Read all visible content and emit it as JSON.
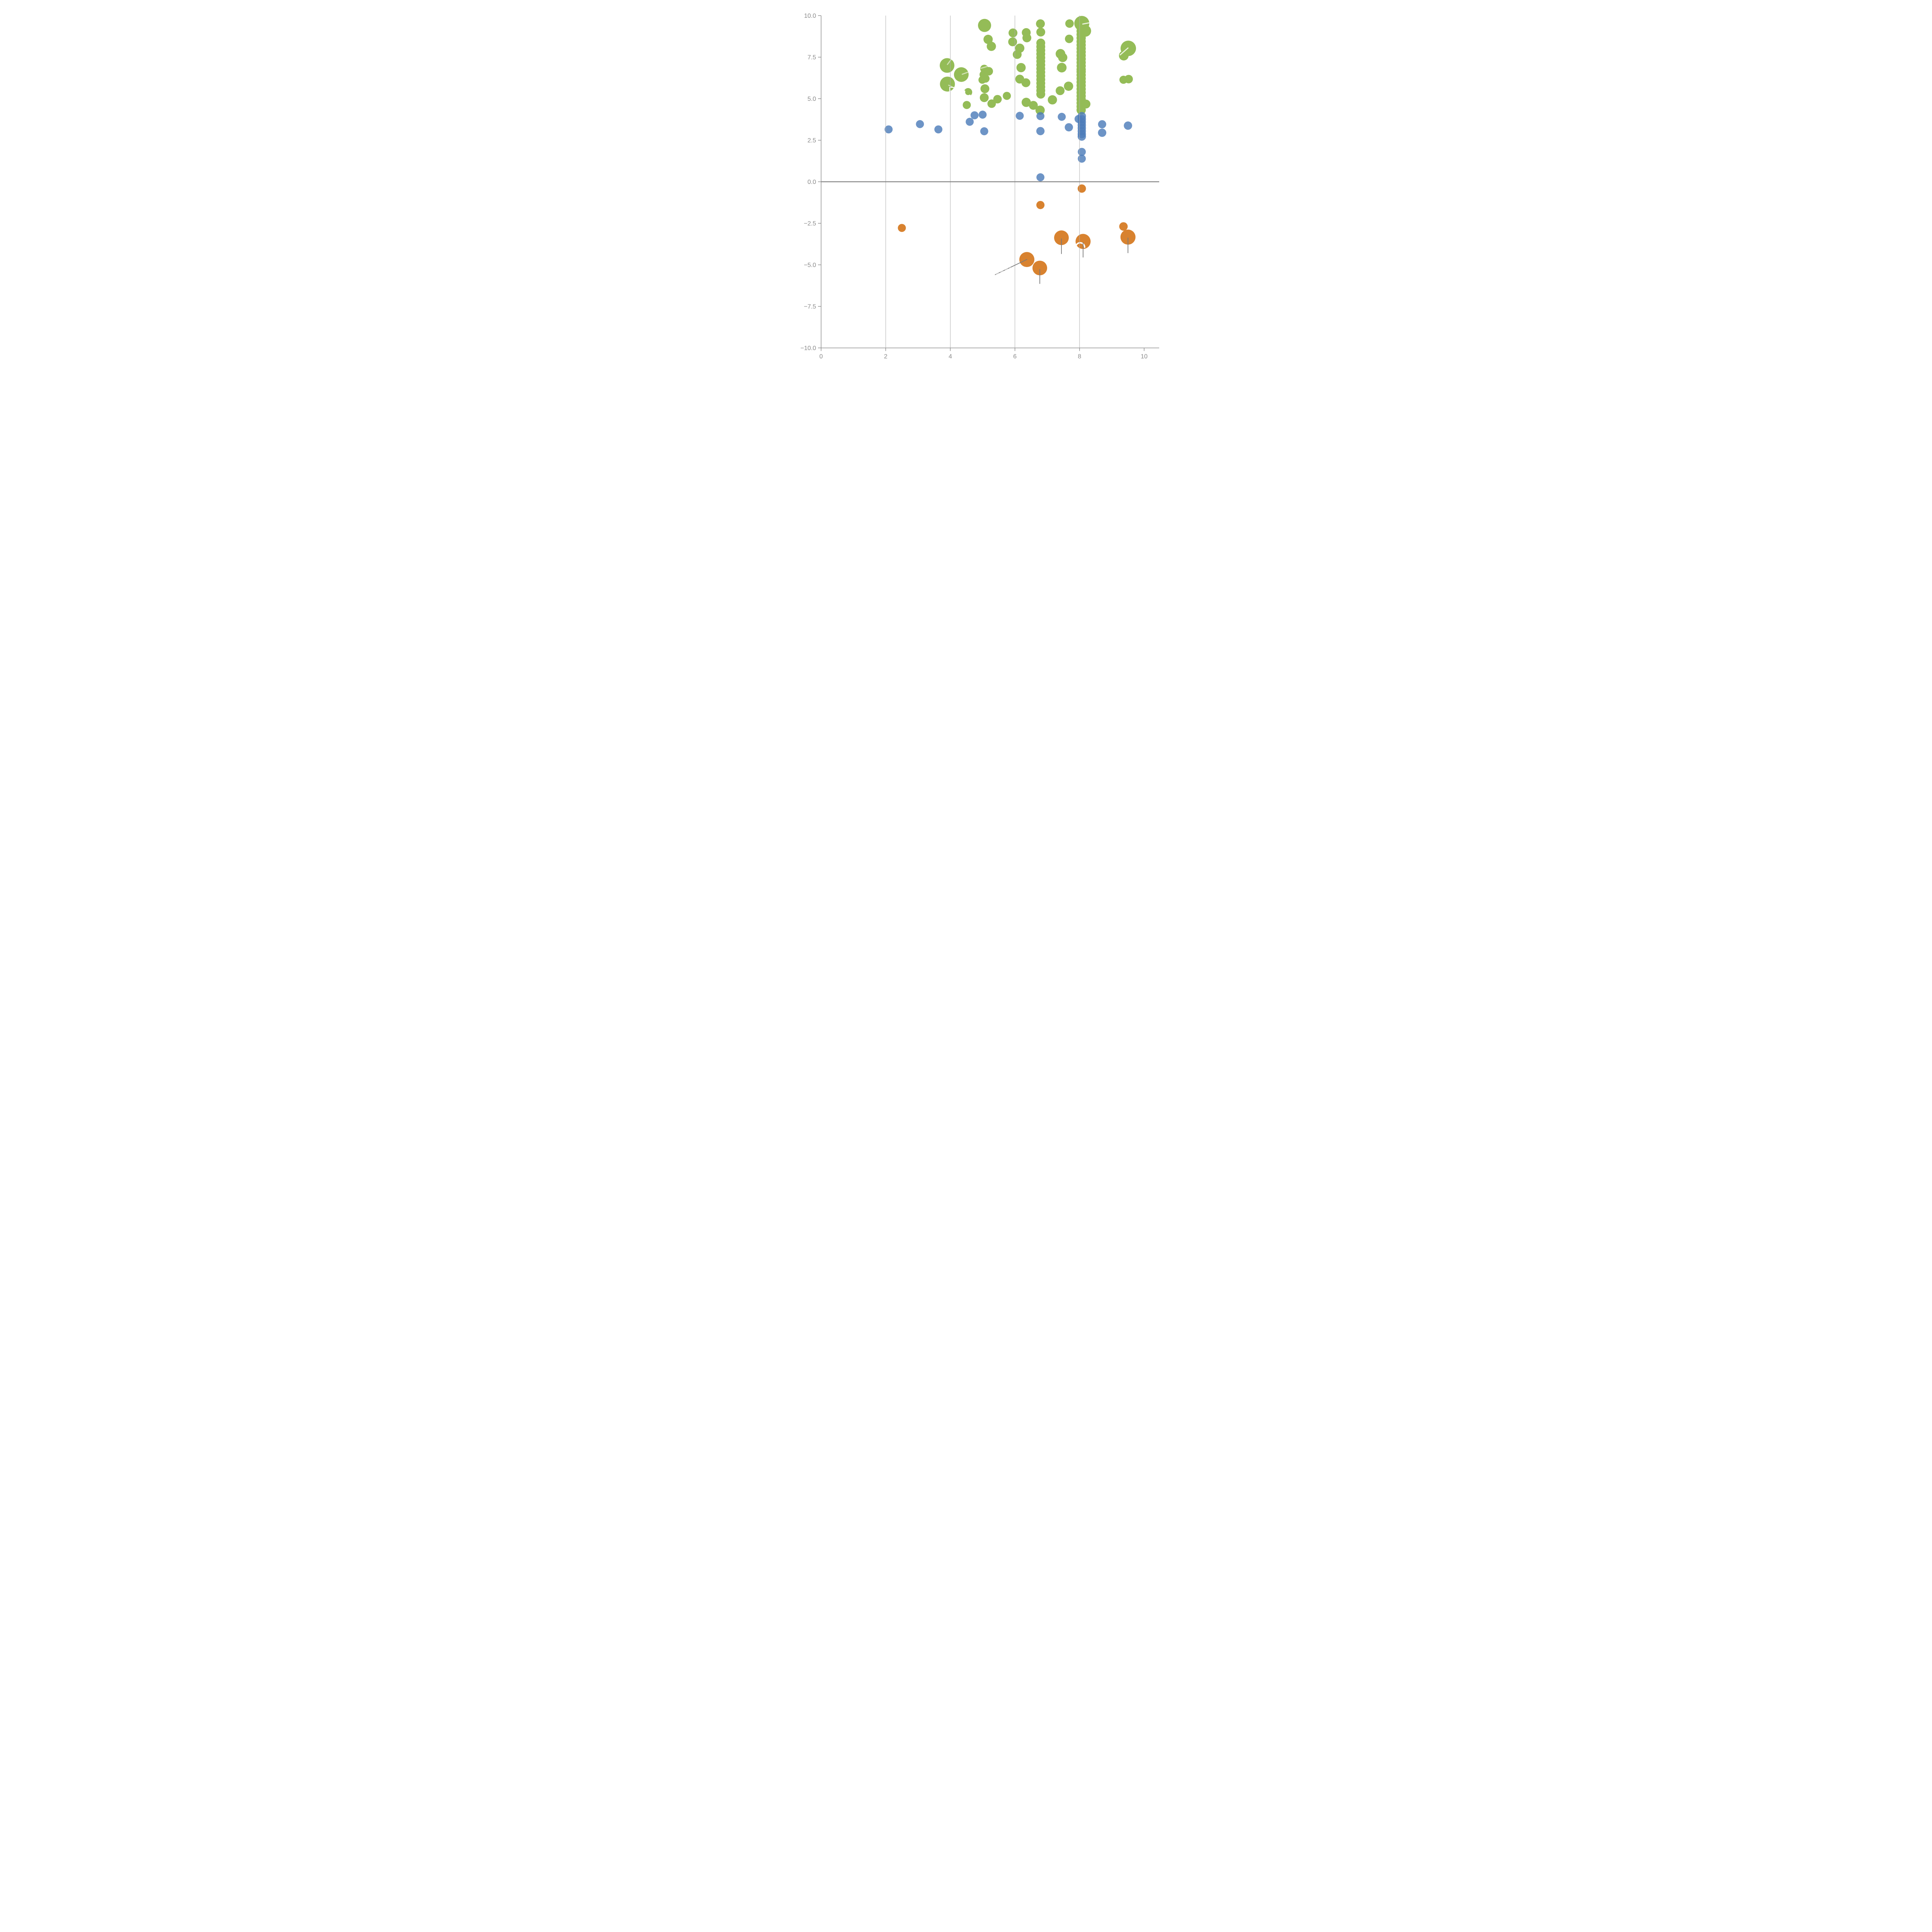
{
  "chart_data": {
    "type": "scatter",
    "title": "",
    "xlabel": "",
    "ylabel": "",
    "xlim": [
      0,
      10.45
    ],
    "ylim": [
      -10.5,
      10.1
    ],
    "grid": "vertical-only",
    "legend": null,
    "x_ticks": [
      {
        "v": 0,
        "label": "0"
      },
      {
        "v": 2,
        "label": "2"
      },
      {
        "v": 4,
        "label": "4"
      },
      {
        "v": 6,
        "label": "6"
      },
      {
        "v": 8,
        "label": "8"
      },
      {
        "v": 10,
        "label": "10"
      }
    ],
    "y_ticks": [
      {
        "v": 10,
        "label": "10.0"
      },
      {
        "v": 7.5,
        "label": "7.5"
      },
      {
        "v": 5,
        "label": "5.0"
      },
      {
        "v": 2.5,
        "label": "2.5"
      },
      {
        "v": 0,
        "label": "0.0"
      },
      {
        "v": -2.5,
        "label": "−2.5"
      },
      {
        "v": -5,
        "label": "−5.0"
      },
      {
        "v": -7.5,
        "label": "−7.5"
      },
      {
        "v": -10,
        "label": "−10.0"
      }
    ],
    "gridlines_x": [
      2,
      4,
      6,
      8
    ],
    "zero_line_y": 0,
    "colors": {
      "green": "#94BC57",
      "blue": "#4D7CBA",
      "orange": "#D8822F",
      "grid": "#ADADAD",
      "zero_line": "#7F7F7F",
      "axis": "#8A8A8A",
      "tick_label": "#8A8A8A",
      "stem": "#7A7A7A",
      "dashed": "#C8C8C8",
      "white": "#FFFFFF"
    },
    "series": [
      {
        "name": "green-bubbles",
        "color": "#94BC57",
        "opacity": 1,
        "points": [
          [
            3.9,
            7.0,
            19.0
          ],
          [
            4.34,
            6.45,
            19.0
          ],
          [
            3.91,
            5.88,
            19.4
          ],
          [
            4.55,
            5.39,
            10.7
          ],
          [
            4.51,
            4.62,
            10.5
          ],
          [
            5.07,
            5.6,
            11.5
          ],
          [
            5.05,
            5.06,
            11.5
          ],
          [
            5.28,
            4.7,
            11.0
          ],
          [
            5.46,
            4.97,
            11.0
          ],
          [
            5.75,
            5.17,
            10.5
          ],
          [
            5.06,
            9.41,
            17.0
          ],
          [
            5.17,
            8.57,
            12.0
          ],
          [
            5.27,
            8.15,
            12.0
          ],
          [
            5.05,
            6.8,
            10.5
          ],
          [
            5.19,
            6.65,
            11.0
          ],
          [
            5.03,
            6.45,
            10.5
          ],
          [
            5.09,
            6.21,
            10.5
          ],
          [
            4.99,
            6.13,
            10.0
          ],
          [
            5.94,
            8.96,
            11.5
          ],
          [
            5.93,
            8.42,
            11.5
          ],
          [
            6.35,
            8.98,
            11.5
          ],
          [
            6.37,
            8.66,
            11.5
          ],
          [
            6.15,
            8.04,
            12.0
          ],
          [
            6.07,
            7.66,
            11.5
          ],
          [
            6.19,
            6.87,
            12.0
          ],
          [
            6.15,
            6.18,
            11.5
          ],
          [
            6.34,
            5.96,
            11.5
          ],
          [
            6.35,
            4.78,
            12.0
          ],
          [
            6.57,
            4.6,
            11.5
          ],
          [
            6.78,
            4.31,
            12.0
          ],
          [
            7.16,
            4.93,
            12.0
          ],
          [
            7.4,
            5.48,
            11.5
          ],
          [
            7.66,
            5.75,
            12.0
          ],
          [
            7.41,
            7.7,
            12.5
          ],
          [
            7.48,
            7.48,
            12.0
          ],
          [
            7.45,
            6.87,
            12.5
          ],
          [
            7.69,
            9.52,
            11.0
          ],
          [
            7.68,
            8.6,
            11.0
          ],
          [
            6.79,
            9.51,
            11.5
          ],
          [
            6.8,
            9.01,
            11.5
          ],
          [
            6.8,
            8.35,
            11.5
          ],
          [
            6.8,
            8.13,
            11.5
          ],
          [
            6.8,
            7.91,
            11.5
          ],
          [
            6.8,
            7.69,
            11.5
          ],
          [
            6.8,
            7.47,
            11.5
          ],
          [
            6.8,
            7.25,
            11.5
          ],
          [
            6.8,
            7.03,
            11.5
          ],
          [
            6.8,
            6.81,
            11.5
          ],
          [
            6.8,
            6.59,
            11.5
          ],
          [
            6.8,
            6.37,
            11.5
          ],
          [
            6.8,
            6.15,
            11.5
          ],
          [
            6.8,
            5.93,
            11.5
          ],
          [
            6.8,
            5.71,
            11.5
          ],
          [
            6.8,
            5.49,
            11.5
          ],
          [
            6.8,
            5.27,
            11.5
          ],
          [
            8.07,
            9.53,
            19.5
          ],
          [
            8.18,
            9.08,
            15.0
          ],
          [
            8.05,
            9.28,
            12.0
          ],
          [
            8.05,
            9.07,
            12.0
          ],
          [
            8.05,
            8.86,
            12.0
          ],
          [
            8.05,
            8.65,
            12.0
          ],
          [
            8.05,
            8.44,
            12.0
          ],
          [
            8.05,
            8.23,
            12.0
          ],
          [
            8.05,
            8.02,
            12.0
          ],
          [
            8.05,
            7.81,
            12.0
          ],
          [
            8.05,
            7.6,
            12.0
          ],
          [
            8.05,
            7.39,
            12.0
          ],
          [
            8.05,
            7.18,
            12.0
          ],
          [
            8.05,
            6.97,
            12.0
          ],
          [
            8.05,
            6.76,
            12.0
          ],
          [
            8.05,
            6.62,
            12.0
          ],
          [
            8.05,
            6.42,
            12.0
          ],
          [
            8.05,
            6.21,
            12.0
          ],
          [
            8.05,
            6.0,
            12.0
          ],
          [
            8.05,
            5.79,
            12.0
          ],
          [
            8.05,
            5.58,
            12.0
          ],
          [
            8.05,
            5.37,
            12.0
          ],
          [
            8.05,
            5.16,
            12.0
          ],
          [
            8.05,
            4.95,
            12.0
          ],
          [
            8.05,
            4.74,
            12.0
          ],
          [
            8.05,
            4.53,
            12.0
          ],
          [
            8.05,
            4.32,
            12.0
          ],
          [
            8.2,
            4.68,
            11.5
          ],
          [
            9.51,
            8.03,
            20.0
          ],
          [
            9.37,
            7.59,
            12.5
          ],
          [
            9.36,
            6.14,
            10.5
          ],
          [
            9.52,
            6.18,
            11.0
          ]
        ]
      },
      {
        "name": "blue-bubbles",
        "color": "#4D7CBA",
        "opacity": 0.82,
        "points": [
          [
            2.09,
            3.15,
            10.4
          ],
          [
            3.06,
            3.47,
            10.4
          ],
          [
            3.63,
            3.15,
            10.4
          ],
          [
            4.6,
            3.61,
            10.4
          ],
          [
            4.75,
            4.0,
            10.4
          ],
          [
            5.0,
            4.04,
            10.4
          ],
          [
            5.05,
            3.04,
            10.4
          ],
          [
            6.15,
            3.97,
            10.4
          ],
          [
            6.79,
            3.95,
            10.4
          ],
          [
            6.79,
            3.05,
            10.7
          ],
          [
            7.45,
            3.91,
            10.4
          ],
          [
            7.67,
            3.28,
            10.7
          ],
          [
            7.97,
            3.78,
            10.4
          ],
          [
            8.07,
            3.95,
            10.8
          ],
          [
            8.07,
            3.77,
            10.8
          ],
          [
            8.07,
            3.59,
            10.8
          ],
          [
            8.07,
            3.41,
            10.8
          ],
          [
            8.07,
            3.23,
            10.8
          ],
          [
            8.07,
            3.05,
            10.8
          ],
          [
            8.07,
            2.87,
            10.8
          ],
          [
            8.07,
            2.72,
            10.8
          ],
          [
            8.07,
            1.8,
            10.4
          ],
          [
            8.07,
            1.39,
            10.4
          ],
          [
            8.7,
            3.46,
            10.6
          ],
          [
            8.7,
            2.95,
            10.8
          ],
          [
            9.5,
            3.38,
            10.8
          ],
          [
            6.79,
            0.27,
            10.4
          ]
        ]
      },
      {
        "name": "orange-bubbles",
        "color": "#D8822F",
        "opacity": 1,
        "points": [
          [
            2.5,
            -2.78,
            10.4
          ],
          [
            6.79,
            -1.4,
            10.6
          ],
          [
            8.07,
            -0.41,
            10.8
          ],
          [
            9.36,
            -2.69,
            11.0
          ],
          [
            7.44,
            -3.37,
            19.0
          ],
          [
            8.11,
            -3.59,
            19.5
          ],
          [
            6.37,
            -4.68,
            19.5
          ],
          [
            6.77,
            -5.19,
            19.0
          ],
          [
            9.5,
            -3.33,
            19.5
          ]
        ]
      }
    ],
    "annotations": {
      "gray_segments": [
        [
          7.44,
          -3.43,
          7.44,
          -4.33
        ],
        [
          8.11,
          -3.67,
          8.11,
          -4.54
        ],
        [
          6.77,
          -5.27,
          6.77,
          -6.13
        ],
        [
          9.5,
          -3.38,
          9.5,
          -4.28
        ],
        [
          5.39,
          -5.59,
          6.37,
          -4.68
        ]
      ],
      "gray_dashed_segments": [
        [
          5.42,
          -5.57,
          5.86,
          -5.16
        ]
      ],
      "white_dashes": [
        {
          "x1": 3.91,
          "y1": 7.06,
          "x2": 4.03,
          "y2": 7.37,
          "opacity": 0.55
        },
        {
          "x1": 4.37,
          "y1": 6.47,
          "x2": 4.54,
          "y2": 6.59,
          "opacity": 0.55
        },
        {
          "x1": 3.95,
          "y1": 5.81,
          "x2": 4.13,
          "y2": 5.64,
          "opacity": 0.55
        },
        {
          "x1": 4.95,
          "y1": 6.83,
          "x2": 5.13,
          "y2": 6.93,
          "opacity": 0.55
        },
        {
          "x1": 8.1,
          "y1": 9.49,
          "x2": 8.31,
          "y2": 9.57,
          "opacity": 0.8
        },
        {
          "x1": 9.26,
          "y1": 7.64,
          "x2": 9.5,
          "y2": 8.05,
          "opacity": 0.8
        },
        {
          "x1": 3.96,
          "y1": 8.32,
          "x2": 4.04,
          "y2": 8.19,
          "opacity": 0.85
        },
        {
          "x1": 5.98,
          "y1": -5.18,
          "x2": 5.98,
          "y2": -5.62,
          "opacity": 0.95,
          "dash": "6 9"
        }
      ],
      "white_arcs": [
        {
          "cx": 4.55,
          "cy": 5.39,
          "r": 9.5,
          "start_deg": 300,
          "end_deg": 165,
          "width": 4.0
        },
        {
          "cx": 8.02,
          "cy": -3.94,
          "r": 11.5,
          "start_deg": 180,
          "end_deg": 0,
          "width": 3.6
        }
      ],
      "white_text": [
        {
          "label": "P",
          "x": 4.05,
          "y": 5.5,
          "size": 27
        }
      ]
    }
  }
}
